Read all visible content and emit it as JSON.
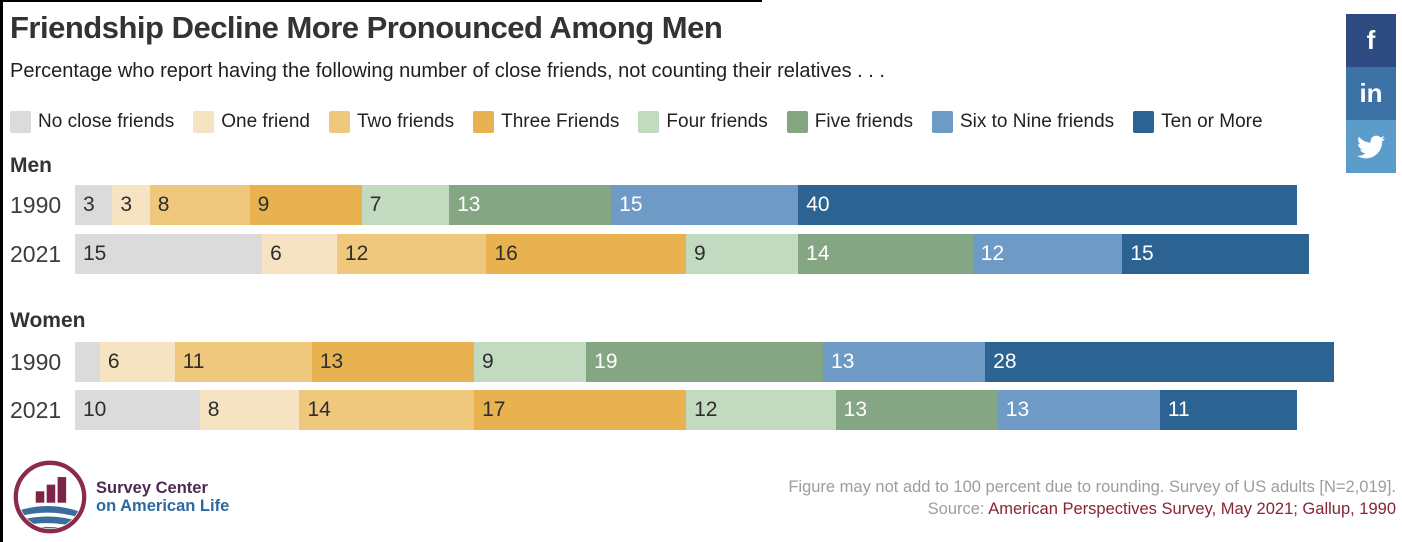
{
  "header": {
    "title": "Friendship Decline More Pronounced Among Men",
    "subtitle": "Percentage who report having the following number of close friends, not counting their relatives . . ."
  },
  "legend": [
    {
      "label": "No close friends",
      "color": "#dbdbdb",
      "label_color": "#2e2e2e"
    },
    {
      "label": "One friend",
      "color": "#f6e3c1",
      "label_color": "#2e2e2e"
    },
    {
      "label": "Two friends",
      "color": "#efc87e",
      "label_color": "#2e2e2e"
    },
    {
      "label": "Three Friends",
      "color": "#e7b24f",
      "label_color": "#2e2e2e"
    },
    {
      "label": "Four friends",
      "color": "#c2dbc0",
      "label_color": "#2e2e2e"
    },
    {
      "label": "Five friends",
      "color": "#85a682",
      "label_color": "#ffffff"
    },
    {
      "label": "Six to Nine friends",
      "color": "#6d9bc5",
      "label_color": "#ffffff"
    },
    {
      "label": "Ten or More",
      "color": "#2d6392",
      "label_color": "#ffffff"
    }
  ],
  "chart_data": {
    "type": "bar",
    "stacked": true,
    "orientation": "horizontal",
    "unit": "percent of adults",
    "categories": [
      "No close friends",
      "One friend",
      "Two friends",
      "Three Friends",
      "Four friends",
      "Five friends",
      "Six to Nine friends",
      "Ten or More"
    ],
    "xlim": [
      0,
      101
    ],
    "groups": [
      {
        "name": "Men",
        "rows": [
          {
            "year": "1990",
            "values": [
              3,
              3,
              8,
              9,
              7,
              13,
              15,
              40
            ],
            "hidden_labels": []
          },
          {
            "year": "2021",
            "values": [
              15,
              6,
              12,
              16,
              9,
              14,
              12,
              15
            ],
            "hidden_labels": []
          }
        ]
      },
      {
        "name": "Women",
        "rows": [
          {
            "year": "1990",
            "values": [
              2,
              6,
              11,
              13,
              9,
              19,
              13,
              28
            ],
            "hidden_labels": [
              0
            ]
          },
          {
            "year": "2021",
            "values": [
              10,
              8,
              14,
              17,
              12,
              13,
              13,
              11
            ],
            "hidden_labels": []
          }
        ]
      }
    ]
  },
  "footer": {
    "logo_line1": "Survey Center",
    "logo_line2": "on American Life",
    "note": "Figure may not add to 100 percent due to rounding. Survey of US adults [N=2,019].",
    "source_prefix": "Source: ",
    "source_link": "American Perspectives Survey, May 2021; Gallup, 1990",
    "logo_colors": {
      "ring": "#8a2a4c",
      "bars": "#7c2547",
      "waves": "#3a6d9e"
    }
  },
  "social": [
    {
      "name": "facebook",
      "glyph": "f",
      "color": "#2d4b80"
    },
    {
      "name": "linkedin",
      "glyph": "in",
      "color": "#3d72a6"
    },
    {
      "name": "twitter",
      "glyph": "bird",
      "color": "#5c9cca"
    }
  ]
}
